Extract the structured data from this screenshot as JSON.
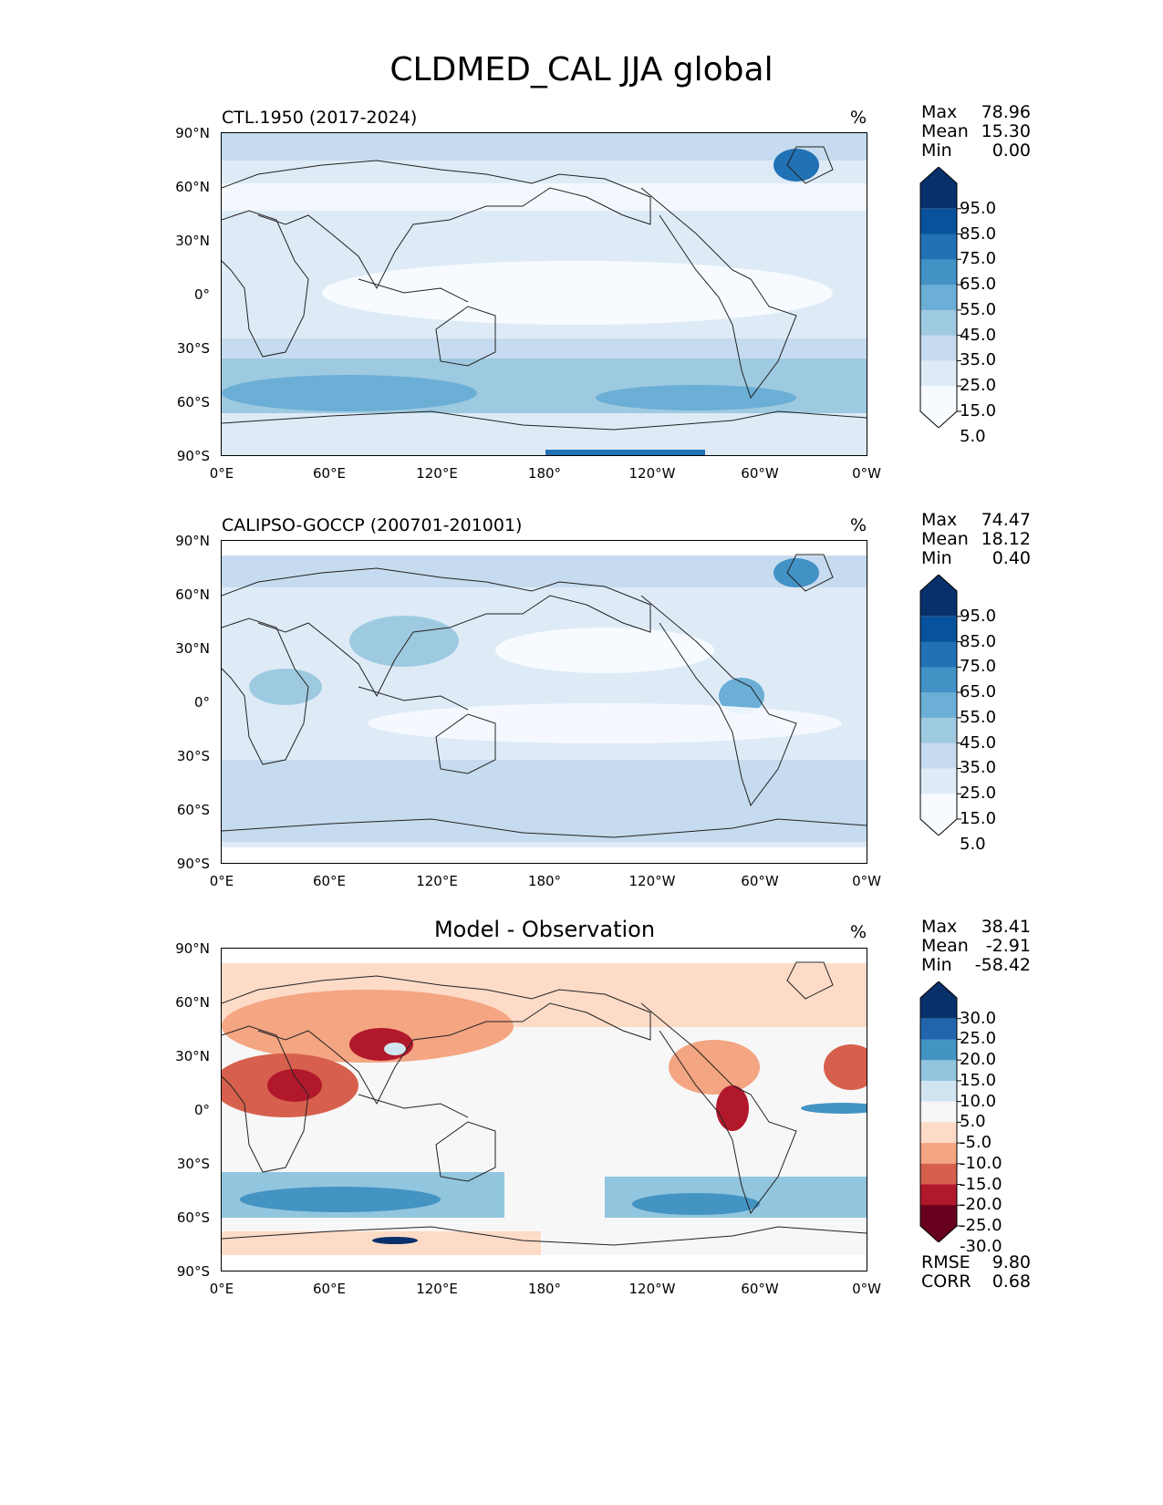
{
  "figure": {
    "title": "CLDMED_CAL JJA global",
    "unit": "%"
  },
  "axes": {
    "lat_ticks": [
      "90°N",
      "60°N",
      "30°N",
      "0°",
      "30°S",
      "60°S",
      "90°S"
    ],
    "lon_ticks": [
      "0°E",
      "60°E",
      "120°E",
      "180°",
      "120°W",
      "60°W",
      "0°W"
    ]
  },
  "panels": [
    {
      "title": "CTL.1950 (2017-2024)",
      "stats": {
        "labels": [
          "Max",
          "Mean",
          "Min"
        ],
        "values": [
          "78.96",
          "15.30",
          "0.00"
        ]
      },
      "colorbar": {
        "labels": [
          "95.0",
          "85.0",
          "75.0",
          "65.0",
          "55.0",
          "45.0",
          "35.0",
          "25.0",
          "15.0",
          "5.0"
        ],
        "colors": [
          "#08306b",
          "#08519c",
          "#2171b5",
          "#4292c6",
          "#6baed6",
          "#9ecae1",
          "#c6dbef",
          "#deebf7",
          "#f7fbff"
        ]
      }
    },
    {
      "title": "CALIPSO-GOCCP (200701-201001)",
      "stats": {
        "labels": [
          "Max",
          "Mean",
          "Min"
        ],
        "values": [
          "74.47",
          "18.12",
          "0.40"
        ]
      },
      "colorbar": {
        "labels": [
          "95.0",
          "85.0",
          "75.0",
          "65.0",
          "55.0",
          "45.0",
          "35.0",
          "25.0",
          "15.0",
          "5.0"
        ],
        "colors": [
          "#08306b",
          "#08519c",
          "#2171b5",
          "#4292c6",
          "#6baed6",
          "#9ecae1",
          "#c6dbef",
          "#deebf7",
          "#f7fbff"
        ]
      }
    },
    {
      "title": "Model - Observation",
      "stats": {
        "labels": [
          "Max",
          "Mean",
          "Min"
        ],
        "values": [
          "38.41",
          "-2.91",
          "-58.42"
        ]
      },
      "colorbar": {
        "labels": [
          "30.0",
          "25.0",
          "20.0",
          "15.0",
          "10.0",
          "5.0",
          "-5.0",
          "-10.0",
          "-15.0",
          "-20.0",
          "-25.0",
          "-30.0"
        ],
        "colors": [
          "#08306b",
          "#2166ac",
          "#4393c3",
          "#92c5de",
          "#d1e5f0",
          "#f7f7f7",
          "#fddbc7",
          "#f4a582",
          "#d6604d",
          "#b2182b",
          "#67001f"
        ]
      },
      "metrics": {
        "labels": [
          "RMSE",
          "CORR"
        ],
        "values": [
          "9.80",
          "0.68"
        ]
      }
    }
  ]
}
